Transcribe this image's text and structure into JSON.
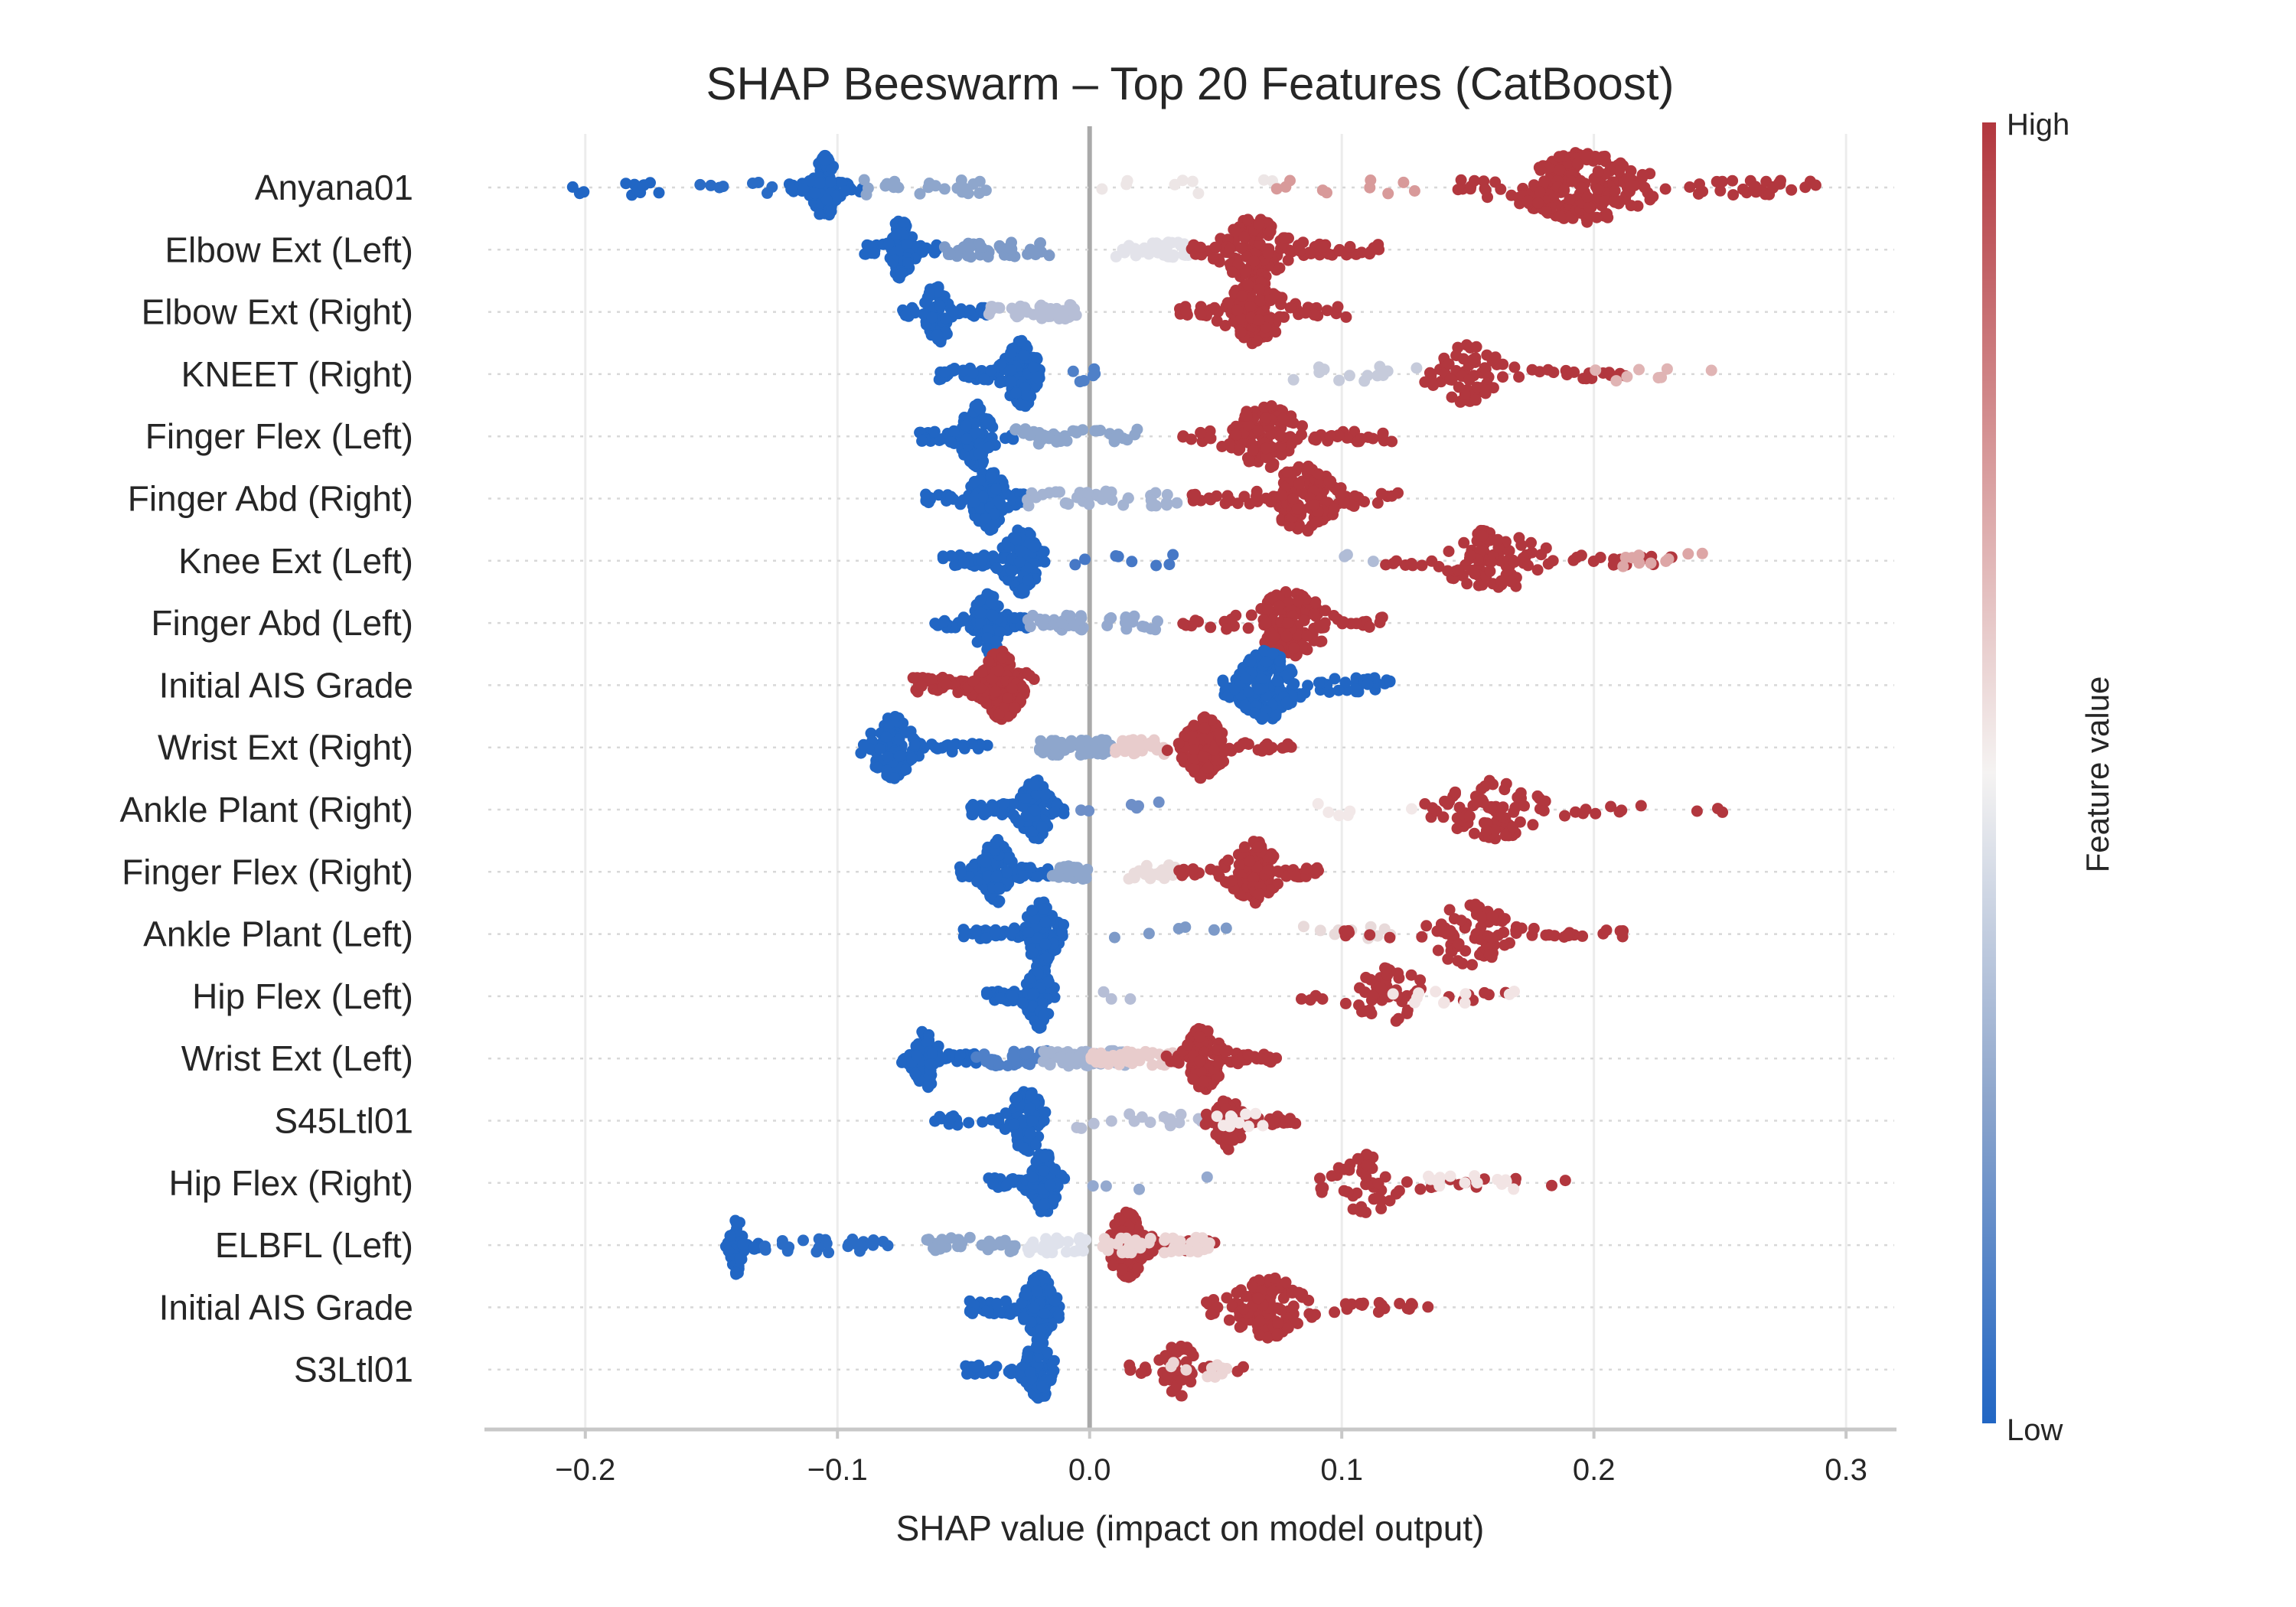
{
  "chart_data": {
    "type": "scatter",
    "subtype": "shap-beeswarm",
    "title": "SHAP Beeswarm – Top 20 Features (CatBoost)",
    "xlabel": "SHAP value (impact on model output)",
    "ylabel": "",
    "xlim": [
      -0.24,
      0.32
    ],
    "xticks": [
      -0.2,
      -0.1,
      0.0,
      0.1,
      0.2,
      0.3
    ],
    "xtick_labels": [
      "−0.2",
      "−0.1",
      "0.0",
      "0.1",
      "0.2",
      "0.3"
    ],
    "grid": "vertical at ticks, dotted horizontal per feature",
    "colorbar": {
      "title": "Feature value",
      "high_label": "High",
      "low_label": "Low",
      "low_color": "#2166c4",
      "mid_color": "#f5f3f2",
      "high_color": "#b2373e"
    },
    "features": [
      {
        "name": "Anyana01",
        "segments": [
          {
            "from": -0.21,
            "to": -0.165,
            "n": 12,
            "color": "#2166c4"
          },
          {
            "from": -0.16,
            "to": -0.125,
            "n": 8,
            "color": "#2a6cc6"
          },
          {
            "from": -0.12,
            "to": -0.09,
            "n": 120,
            "color": "#2166c4",
            "peak": -0.105
          },
          {
            "from": -0.09,
            "to": -0.035,
            "n": 22,
            "color": "#8ea6cc"
          },
          {
            "from": -0.01,
            "to": 0.08,
            "n": 10,
            "color": "#ede6e6"
          },
          {
            "from": 0.07,
            "to": 0.14,
            "n": 10,
            "color": "#d89a9a"
          },
          {
            "from": 0.145,
            "to": 0.295,
            "n": 230,
            "color": "#b2373e",
            "peak": 0.195
          }
        ]
      },
      {
        "name": "Elbow Ext (Left)",
        "segments": [
          {
            "from": -0.09,
            "to": -0.06,
            "n": 90,
            "color": "#2166c4",
            "peak": -0.075
          },
          {
            "from": -0.06,
            "to": -0.015,
            "n": 40,
            "color": "#7d9ac8"
          },
          {
            "from": 0.01,
            "to": 0.04,
            "n": 40,
            "color": "#e3e3ea"
          },
          {
            "from": 0.04,
            "to": 0.115,
            "n": 150,
            "color": "#b2373e",
            "peak": 0.065
          }
        ]
      },
      {
        "name": "Elbow Ext (Right)",
        "segments": [
          {
            "from": -0.075,
            "to": -0.04,
            "n": 90,
            "color": "#2166c4",
            "peak": -0.06
          },
          {
            "from": -0.04,
            "to": -0.005,
            "n": 40,
            "color": "#b6bed6"
          },
          {
            "from": 0.035,
            "to": 0.105,
            "n": 140,
            "color": "#b2373e",
            "peak": 0.065
          }
        ]
      },
      {
        "name": "KNEET (Right)",
        "segments": [
          {
            "from": -0.06,
            "to": -0.02,
            "n": 160,
            "color": "#2166c4",
            "peak": -0.027
          },
          {
            "from": -0.015,
            "to": 0.02,
            "n": 6,
            "color": "#4f80c8"
          },
          {
            "from": 0.08,
            "to": 0.13,
            "n": 14,
            "color": "#c6cbdb"
          },
          {
            "from": 0.13,
            "to": 0.215,
            "n": 80,
            "color": "#b2373e",
            "peak": 0.15
          },
          {
            "from": 0.2,
            "to": 0.25,
            "n": 8,
            "color": "#e0b4b4"
          }
        ]
      },
      {
        "name": "Finger Flex (Left)",
        "segments": [
          {
            "from": -0.068,
            "to": -0.03,
            "n": 130,
            "color": "#2166c4",
            "peak": -0.045
          },
          {
            "from": -0.03,
            "to": 0.02,
            "n": 40,
            "color": "#8ea6cc"
          },
          {
            "from": 0.035,
            "to": 0.12,
            "n": 140,
            "color": "#b2373e",
            "peak": 0.07
          }
        ]
      },
      {
        "name": "Finger Abd (Right)",
        "segments": [
          {
            "from": -0.065,
            "to": -0.025,
            "n": 130,
            "color": "#2166c4",
            "peak": -0.04
          },
          {
            "from": -0.025,
            "to": 0.035,
            "n": 40,
            "color": "#a3b3d2"
          },
          {
            "from": 0.04,
            "to": 0.123,
            "n": 150,
            "color": "#b2373e",
            "peak": 0.085
          }
        ]
      },
      {
        "name": "Knee Ext (Left)",
        "segments": [
          {
            "from": -0.06,
            "to": -0.015,
            "n": 150,
            "color": "#2166c4",
            "peak": -0.027
          },
          {
            "from": -0.01,
            "to": 0.045,
            "n": 8,
            "color": "#4678c6"
          },
          {
            "from": 0.09,
            "to": 0.115,
            "n": 3,
            "color": "#b0bcd6"
          },
          {
            "from": 0.115,
            "to": 0.24,
            "n": 110,
            "color": "#b2373e",
            "peak": 0.16
          },
          {
            "from": 0.2,
            "to": 0.255,
            "n": 10,
            "color": "#dda6a6"
          }
        ]
      },
      {
        "name": "Finger Abd (Left)",
        "segments": [
          {
            "from": -0.062,
            "to": -0.025,
            "n": 130,
            "color": "#2166c4",
            "peak": -0.04
          },
          {
            "from": -0.025,
            "to": 0.03,
            "n": 40,
            "color": "#94a9cf"
          },
          {
            "from": 0.03,
            "to": 0.117,
            "n": 150,
            "color": "#b2373e",
            "peak": 0.08
          }
        ]
      },
      {
        "name": "Initial AIS Grade",
        "segments": [
          {
            "from": -0.07,
            "to": -0.022,
            "n": 200,
            "color": "#b2373e",
            "peak": -0.035
          },
          {
            "from": 0.052,
            "to": 0.12,
            "n": 200,
            "color": "#2166c4",
            "peak": 0.07
          }
        ]
      },
      {
        "name": "Wrist Ext (Right)",
        "segments": [
          {
            "from": -0.095,
            "to": -0.04,
            "n": 120,
            "color": "#2166c4",
            "peak": -0.078
          },
          {
            "from": -0.02,
            "to": 0.01,
            "n": 50,
            "color": "#8ea6cc"
          },
          {
            "from": 0.01,
            "to": 0.03,
            "n": 40,
            "color": "#e8cccc"
          },
          {
            "from": 0.03,
            "to": 0.08,
            "n": 120,
            "color": "#b2373e",
            "peak": 0.045
          }
        ]
      },
      {
        "name": "Ankle Plant (Right)",
        "segments": [
          {
            "from": -0.048,
            "to": -0.01,
            "n": 140,
            "color": "#2166c4",
            "peak": -0.022
          },
          {
            "from": -0.01,
            "to": 0.03,
            "n": 6,
            "color": "#6e8fc8"
          },
          {
            "from": 0.09,
            "to": 0.13,
            "n": 6,
            "color": "#f2e8e8"
          },
          {
            "from": 0.13,
            "to": 0.252,
            "n": 90,
            "color": "#b2373e",
            "peak": 0.16
          }
        ]
      },
      {
        "name": "Finger Flex (Right)",
        "segments": [
          {
            "from": -0.052,
            "to": -0.015,
            "n": 130,
            "color": "#2166c4",
            "peak": -0.037
          },
          {
            "from": -0.015,
            "to": 0.0,
            "n": 30,
            "color": "#8ea6cc"
          },
          {
            "from": 0.015,
            "to": 0.035,
            "n": 20,
            "color": "#eadcdc"
          },
          {
            "from": 0.035,
            "to": 0.092,
            "n": 120,
            "color": "#b2373e",
            "peak": 0.065
          }
        ]
      },
      {
        "name": "Ankle Plant (Left)",
        "segments": [
          {
            "from": -0.05,
            "to": -0.01,
            "n": 140,
            "color": "#2166c4",
            "peak": -0.019
          },
          {
            "from": -0.005,
            "to": 0.055,
            "n": 6,
            "color": "#7d9ac8"
          },
          {
            "from": 0.08,
            "to": 0.12,
            "n": 10,
            "color": "#e8dada"
          },
          {
            "from": 0.1,
            "to": 0.215,
            "n": 90,
            "color": "#b2373e",
            "peak": 0.15
          }
        ]
      },
      {
        "name": "Hip Flex (Left)",
        "segments": [
          {
            "from": -0.042,
            "to": -0.012,
            "n": 130,
            "color": "#2166c4",
            "peak": -0.02
          },
          {
            "from": 0.005,
            "to": 0.03,
            "n": 3,
            "color": "#b6bed6"
          },
          {
            "from": 0.08,
            "to": 0.172,
            "n": 60,
            "color": "#b2373e",
            "peak": 0.12
          },
          {
            "from": 0.12,
            "to": 0.17,
            "n": 12,
            "color": "#f2e4e4"
          }
        ]
      },
      {
        "name": "Wrist Ext (Left)",
        "segments": [
          {
            "from": -0.075,
            "to": -0.045,
            "n": 100,
            "color": "#2166c4",
            "peak": -0.065
          },
          {
            "from": -0.045,
            "to": -0.015,
            "n": 40,
            "color": "#4f80c8"
          },
          {
            "from": -0.02,
            "to": 0.015,
            "n": 60,
            "color": "#a3b3d2"
          },
          {
            "from": 0.0,
            "to": 0.035,
            "n": 50,
            "color": "#e8cccc"
          },
          {
            "from": 0.03,
            "to": 0.075,
            "n": 130,
            "color": "#b2373e",
            "peak": 0.045
          }
        ]
      },
      {
        "name": "S45Ltl01",
        "segments": [
          {
            "from": -0.065,
            "to": -0.02,
            "n": 90,
            "color": "#2166c4",
            "peak": -0.025
          },
          {
            "from": -0.01,
            "to": 0.045,
            "n": 16,
            "color": "#b6bed6"
          },
          {
            "from": 0.045,
            "to": 0.085,
            "n": 60,
            "color": "#b2373e",
            "peak": 0.055
          },
          {
            "from": 0.05,
            "to": 0.07,
            "n": 12,
            "color": "#f4e8e8"
          }
        ]
      },
      {
        "name": "Hip Flex (Right)",
        "segments": [
          {
            "from": -0.04,
            "to": -0.01,
            "n": 130,
            "color": "#2166c4",
            "peak": -0.018
          },
          {
            "from": -0.005,
            "to": 0.05,
            "n": 4,
            "color": "#94a9cf"
          },
          {
            "from": 0.09,
            "to": 0.19,
            "n": 60,
            "color": "#b2373e",
            "peak": 0.11
          },
          {
            "from": 0.13,
            "to": 0.17,
            "n": 14,
            "color": "#f2e4e4"
          }
        ]
      },
      {
        "name": "ELBFL (Left)",
        "segments": [
          {
            "from": -0.145,
            "to": -0.13,
            "n": 50,
            "color": "#2166c4",
            "peak": -0.14
          },
          {
            "from": -0.13,
            "to": -0.08,
            "n": 24,
            "color": "#2a6cc6"
          },
          {
            "from": -0.065,
            "to": -0.025,
            "n": 30,
            "color": "#8ea6cc"
          },
          {
            "from": -0.025,
            "to": 0.0,
            "n": 30,
            "color": "#dfe2ec"
          },
          {
            "from": 0.005,
            "to": 0.05,
            "n": 150,
            "color": "#b2373e",
            "peak": 0.015
          },
          {
            "from": 0.005,
            "to": 0.05,
            "n": 40,
            "color": "#ecd5d5"
          }
        ]
      },
      {
        "name": "Initial AIS Grade",
        "segments": [
          {
            "from": -0.048,
            "to": -0.012,
            "n": 170,
            "color": "#2166c4",
            "peak": -0.02
          },
          {
            "from": 0.045,
            "to": 0.135,
            "n": 130,
            "color": "#b2373e",
            "peak": 0.07
          }
        ]
      },
      {
        "name": "S3Ltl01",
        "segments": [
          {
            "from": -0.05,
            "to": -0.015,
            "n": 110,
            "color": "#2166c4",
            "peak": -0.02
          },
          {
            "from": 0.015,
            "to": 0.063,
            "n": 50,
            "color": "#b2373e",
            "peak": 0.035
          },
          {
            "from": 0.025,
            "to": 0.055,
            "n": 10,
            "color": "#ecd5d5"
          }
        ]
      }
    ]
  }
}
